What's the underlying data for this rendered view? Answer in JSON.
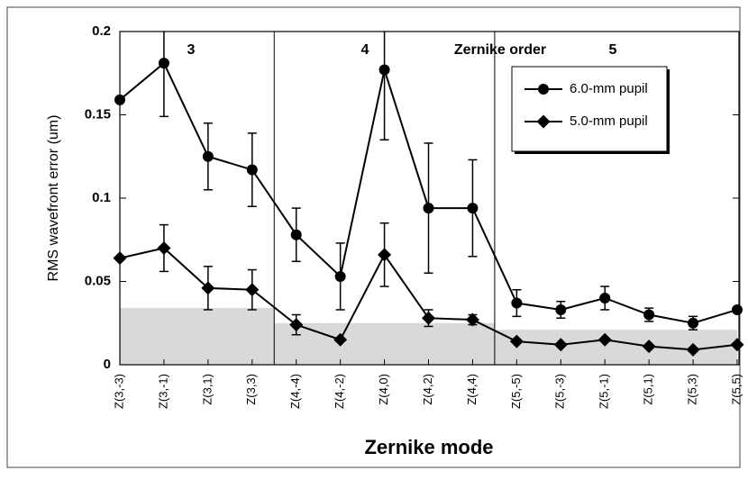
{
  "chart_data": {
    "type": "line",
    "xlabel": "Zernike mode",
    "ylabel": "RMS wavefront error (um)",
    "categories": [
      "Z(3,-3)",
      "Z(3,-1)",
      "Z(3,1)",
      "Z(3,3)",
      "Z(4,-4)",
      "Z(4,-2)",
      "Z(4,0)",
      "Z(4,2)",
      "Z(4,4)",
      "Z(5,-5)",
      "Z(5,-3)",
      "Z(5,-1)",
      "Z(5,1)",
      "Z(5,3)",
      "Z(5,5)"
    ],
    "series": [
      {
        "name": "6.0-mm pupil",
        "color": "#000000",
        "marker": "circle",
        "values": [
          0.159,
          0.181,
          0.125,
          0.117,
          0.078,
          0.053,
          0.177,
          0.094,
          0.094,
          0.037,
          0.033,
          0.04,
          0.03,
          0.025,
          0.033
        ],
        "errors": [
          null,
          0.032,
          0.02,
          0.022,
          0.016,
          0.02,
          0.042,
          0.039,
          0.029,
          0.008,
          0.005,
          0.007,
          0.004,
          0.004,
          null
        ]
      },
      {
        "name": "5.0-mm pupil",
        "color": "#000000",
        "marker": "diamond",
        "values": [
          0.064,
          0.07,
          0.046,
          0.045,
          0.024,
          0.015,
          0.066,
          0.028,
          0.027,
          0.014,
          0.012,
          0.015,
          0.011,
          0.009,
          0.012
        ],
        "errors": [
          null,
          0.014,
          0.013,
          0.012,
          0.006,
          null,
          0.019,
          0.005,
          0.003,
          null,
          null,
          null,
          null,
          null,
          null
        ]
      }
    ],
    "ylim": [
      0,
      0.2
    ],
    "yticks": [
      0,
      0.05,
      0.1,
      0.15,
      0.2
    ],
    "shaded_regions": [
      {
        "x0": 0,
        "x1": 3.5,
        "value": 0.034,
        "color": "#d9d9d9"
      },
      {
        "x0": 3.5,
        "x1": 8.5,
        "value": 0.025,
        "color": "#d9d9d9"
      },
      {
        "x0": 8.5,
        "x1": 14,
        "value": 0.021,
        "color": "#d9d9d9"
      }
    ],
    "dividers": [
      3.5,
      8.5
    ],
    "annotations": [
      "3",
      "4",
      "Zernike order",
      "5"
    ],
    "legend": "upper right"
  }
}
